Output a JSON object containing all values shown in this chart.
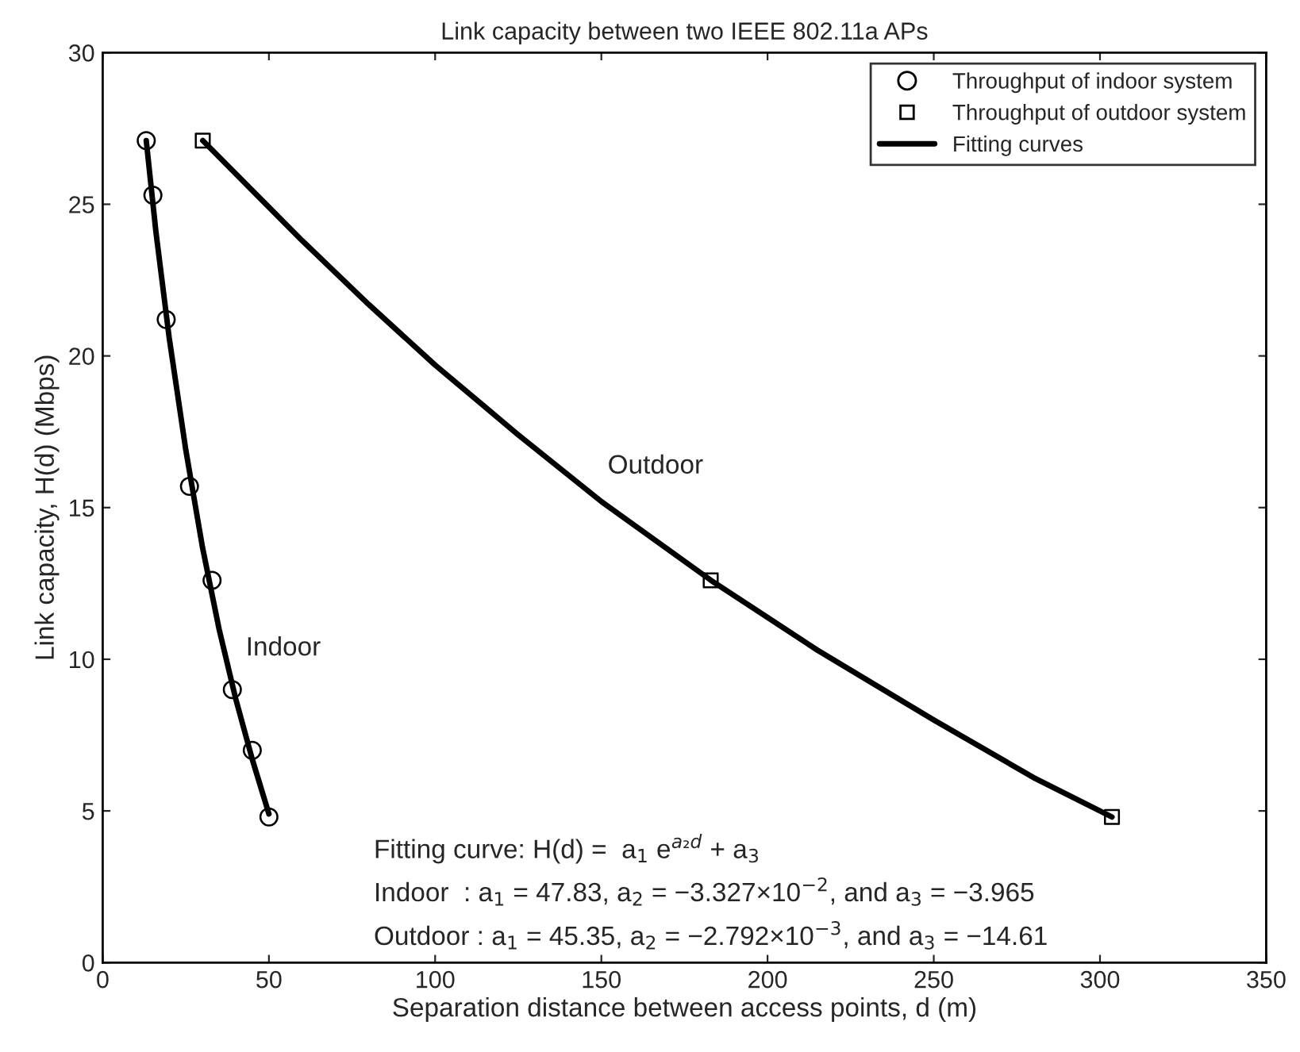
{
  "chart_data": {
    "type": "scatter",
    "title": "Link capacity between two IEEE 802.11a APs",
    "xlabel": "Separation distance between access points, d (m)",
    "ylabel": "Link capacity, H(d) (Mbps)",
    "series": [
      {
        "name": "Throughput of indoor system",
        "marker": "circle",
        "color": "#000000",
        "x": [
          13.1,
          15.1,
          19.1,
          26.1,
          32.9,
          39.0,
          45.0,
          50.0
        ],
        "values": [
          27.1,
          25.3,
          21.2,
          15.7,
          12.6,
          9.0,
          7.0,
          4.8
        ]
      },
      {
        "name": "Throughput of outdoor system",
        "marker": "square",
        "color": "#000000",
        "x": [
          30.1,
          182.9,
          303.6
        ],
        "values": [
          27.1,
          12.6,
          4.8
        ]
      },
      {
        "name": "Fitting curves",
        "type": "line",
        "marker": "none",
        "color": "#000000",
        "x": [
          13.1,
          16,
          20,
          25,
          30,
          35,
          40,
          45,
          50
        ],
        "values": [
          27.1,
          24.1,
          20.6,
          16.9,
          13.7,
          11.0,
          8.7,
          6.7,
          4.9
        ]
      },
      {
        "type": "line",
        "marker": "none",
        "color": "#000000",
        "x": [
          30.1,
          60,
          80,
          100,
          125,
          150,
          183,
          215,
          250,
          280,
          303.6
        ],
        "values": [
          27.1,
          23.8,
          21.7,
          19.7,
          17.4,
          15.2,
          12.6,
          10.3,
          8.0,
          6.1,
          4.8
        ]
      }
    ],
    "xlim": [
      0,
      350
    ],
    "ylim": [
      0,
      30
    ],
    "xticks": [
      0,
      50,
      100,
      150,
      200,
      250,
      300,
      350
    ],
    "yticks": [
      0,
      5,
      10,
      15,
      20,
      25,
      30
    ],
    "grid": false,
    "legend": "top right",
    "annotations": [
      "Indoor",
      "Outdoor",
      "Fitting curve: H(d) =  a$_{1}$ e$^{a₂d}$ + a$_{3}$",
      "Indoor  : a$_{1}$ = 47.83, a$_{2}$ = −3.327×10$^{−2}$, and a$_{3}$ = −3.965",
      "Outdoor : a$_{1}$ = 45.35, a$_{2}$ = −2.792×10$^{−3}$, and a$_{3}$ = −14.61"
    ]
  }
}
